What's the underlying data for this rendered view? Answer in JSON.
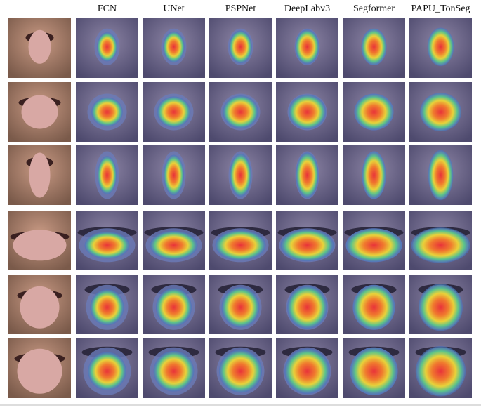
{
  "header": {
    "columns": [
      "FCN",
      "UNet",
      "PSPNet",
      "DeepLabv3",
      "Segformer",
      "PAPU_TonSeg"
    ]
  }
}
